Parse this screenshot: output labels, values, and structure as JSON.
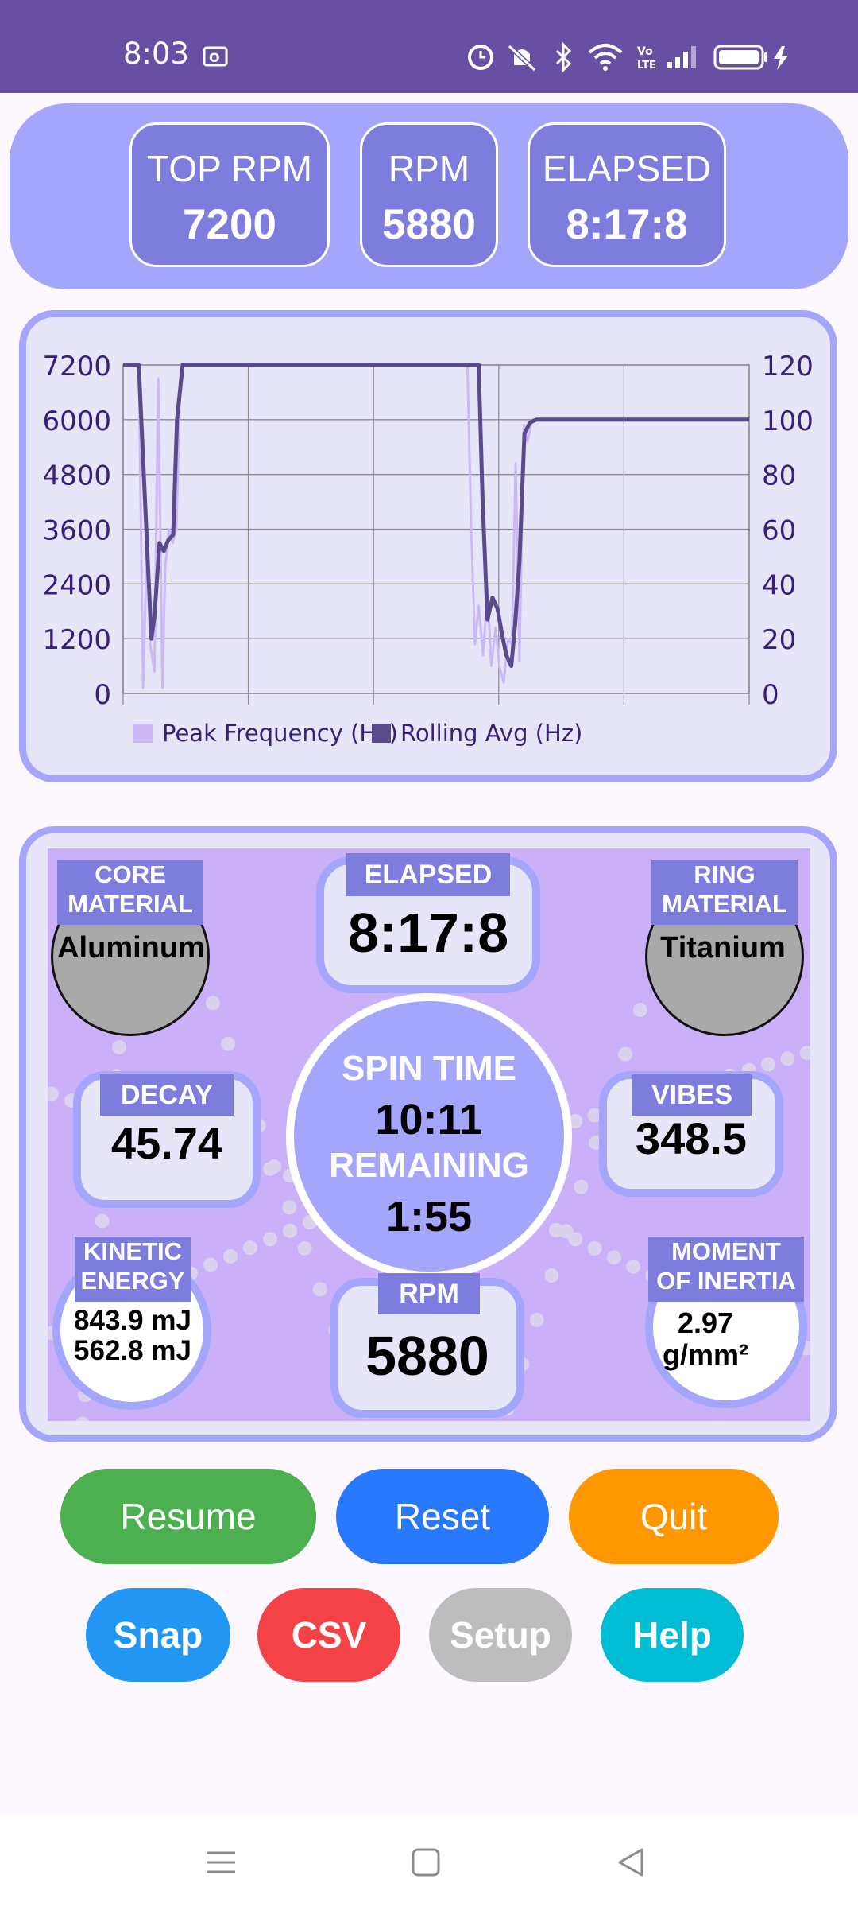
{
  "status_bar": {
    "time": "8:03"
  },
  "top_stats": [
    {
      "label": "TOP RPM",
      "value": "7200"
    },
    {
      "label": "RPM",
      "value": "5880"
    },
    {
      "label": "ELAPSED",
      "value": "8:17:8"
    }
  ],
  "chart_data": {
    "type": "line",
    "y_left_ticks": [
      "7200",
      "6000",
      "4800",
      "3600",
      "2400",
      "1200",
      "0"
    ],
    "y_right_ticks": [
      "120",
      "100",
      "80",
      "60",
      "40",
      "20",
      "0"
    ],
    "ylim_left": [
      0,
      7200
    ],
    "ylim_right": [
      0,
      120
    ],
    "xlim": [
      0,
      100
    ],
    "grid": true,
    "legend_position": "bottom",
    "series": [
      {
        "name": "Peak Frequency (Hz)",
        "color": "#cdb8f7",
        "x": [
          0,
          2.5,
          3.2,
          3.8,
          4.3,
          5.0,
          5.6,
          6.3,
          6.7,
          7.3,
          7.9,
          8.5,
          9.2,
          10,
          55,
          55.6,
          56.2,
          56.8,
          57.5,
          58.2,
          58.8,
          59.5,
          60.1,
          60.8,
          61.5,
          62.1,
          62.7,
          63.3,
          64,
          64.6,
          65.3,
          66,
          100
        ],
        "y": [
          120,
          120,
          2,
          55,
          18,
          8,
          115,
          2,
          45,
          60,
          55,
          60,
          120,
          120,
          120,
          60,
          18,
          32,
          14,
          38,
          10,
          24,
          10,
          4,
          20,
          18,
          84,
          12,
          98,
          92,
          100,
          100,
          100
        ]
      },
      {
        "name": "Rolling Avg (Hz)",
        "color": "#5a4a8c",
        "x": [
          0,
          2.5,
          3.5,
          4.5,
          5.0,
          5.8,
          6.5,
          7.2,
          8.0,
          8.6,
          9.5,
          10.1,
          56.8,
          57.4,
          58.2,
          59.0,
          59.8,
          60.5,
          61.2,
          62.0,
          62.6,
          63.3,
          64.1,
          65.0,
          66.0,
          100
        ],
        "y": [
          120,
          120,
          70,
          20,
          28,
          55,
          52,
          56,
          58,
          100,
          120,
          120,
          120,
          72,
          27,
          35,
          31,
          22,
          14,
          10,
          25,
          48,
          95,
          99,
          100,
          100
        ]
      }
    ]
  },
  "gauge": {
    "core_material_label": "CORE MATERIAL",
    "core_material_label_line1": "CORE",
    "core_material_label_line2": "MATERIAL",
    "core_material": "Aluminum",
    "elapsed_label": "ELAPSED",
    "elapsed": "8:17:8",
    "ring_material_label_line1": "RING",
    "ring_material_label_line2": "MATERIAL",
    "ring_material": "Titanium",
    "decay_label": "DECAY",
    "decay": "45.74",
    "spin_time_label": "SPIN TIME",
    "spin_time": "10:11",
    "remaining_label": "REMAINING",
    "remaining": "1:55",
    "vibes_label": "VIBES",
    "vibes": "348.5",
    "kinetic_label_line1": "KINETIC",
    "kinetic_label_line2": "ENERGY",
    "kinetic_1": "843.9 mJ",
    "kinetic_2": "562.8 mJ",
    "rpm_label": "RPM",
    "rpm": "5880",
    "moment_label_line1": "MOMENT",
    "moment_label_line2": "OF INERTIA",
    "moment_1": "2.97",
    "moment_2": "g/mm²"
  },
  "buttons_row1": [
    {
      "label": "Resume",
      "color": "#4caf50"
    },
    {
      "label": "Reset",
      "color": "#2979ff"
    },
    {
      "label": "Quit",
      "color": "#ff9800"
    }
  ],
  "buttons_row2": [
    {
      "label": "Snap",
      "color": "#2196f3"
    },
    {
      "label": "CSV",
      "color": "#f44347"
    },
    {
      "label": "Setup",
      "color": "#bdbdbd"
    },
    {
      "label": "Help",
      "color": "#00bcd4"
    }
  ],
  "colors": {
    "purple_bar": "#6750a4",
    "accent": "#a3a6fa",
    "accent_dark": "#7c7ddc",
    "gauge_bg": "#c9b0f9"
  }
}
